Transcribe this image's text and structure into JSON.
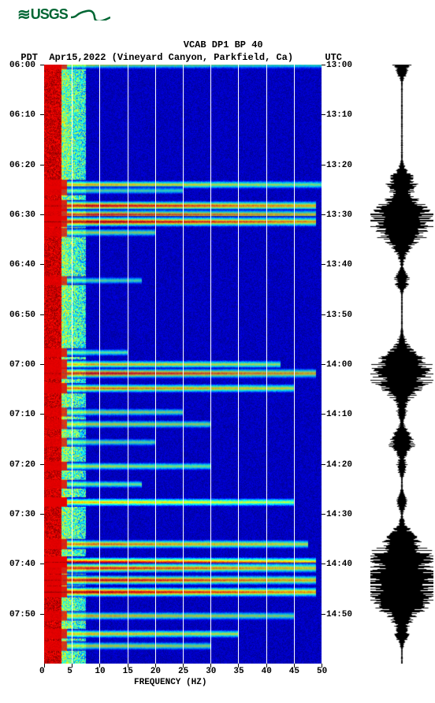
{
  "logo": {
    "text": "USGS"
  },
  "header": {
    "title": "VCAB DP1 BP 40",
    "tz_left": "PDT",
    "date": "Apr15,2022",
    "location": "(Vineyard Canyon, Parkfield, Ca)",
    "tz_right": "UTC"
  },
  "spectrogram": {
    "x_axis": {
      "label": "FREQUENCY (HZ)",
      "min": 0,
      "max": 50,
      "ticks": [
        0,
        5,
        10,
        15,
        20,
        25,
        30,
        35,
        40,
        45,
        50
      ],
      "grid_color": "#ffffff"
    },
    "y_axis_left": {
      "ticks": [
        "06:00",
        "06:10",
        "06:20",
        "06:30",
        "06:40",
        "06:50",
        "07:00",
        "07:10",
        "07:20",
        "07:30",
        "07:40",
        "07:50"
      ]
    },
    "y_axis_right": {
      "ticks": [
        "13:00",
        "13:10",
        "13:20",
        "13:30",
        "13:40",
        "13:50",
        "14:00",
        "14:10",
        "14:20",
        "14:30",
        "14:40",
        "14:50"
      ]
    },
    "background_color": "#0000d0",
    "colormap": [
      "#000080",
      "#0000ff",
      "#0080ff",
      "#00ffff",
      "#80ff80",
      "#ffff00",
      "#ff8000",
      "#ff0000",
      "#800000"
    ],
    "event_bands": [
      {
        "t": 0.0,
        "width": 1.0,
        "intensity": 0.6
      },
      {
        "t": 0.2,
        "width": 1.0,
        "intensity": 0.7
      },
      {
        "t": 0.21,
        "width": 0.5,
        "intensity": 0.5
      },
      {
        "t": 0.235,
        "width": 0.98,
        "intensity": 0.95
      },
      {
        "t": 0.25,
        "width": 0.98,
        "intensity": 0.9
      },
      {
        "t": 0.262,
        "width": 0.98,
        "intensity": 0.98
      },
      {
        "t": 0.28,
        "width": 0.4,
        "intensity": 0.6
      },
      {
        "t": 0.36,
        "width": 0.35,
        "intensity": 0.5
      },
      {
        "t": 0.48,
        "width": 0.3,
        "intensity": 0.5
      },
      {
        "t": 0.5,
        "width": 0.85,
        "intensity": 0.7
      },
      {
        "t": 0.515,
        "width": 0.98,
        "intensity": 0.95
      },
      {
        "t": 0.54,
        "width": 0.9,
        "intensity": 0.8
      },
      {
        "t": 0.58,
        "width": 0.5,
        "intensity": 0.6
      },
      {
        "t": 0.6,
        "width": 0.6,
        "intensity": 0.65
      },
      {
        "t": 0.63,
        "width": 0.4,
        "intensity": 0.55
      },
      {
        "t": 0.67,
        "width": 0.6,
        "intensity": 0.6
      },
      {
        "t": 0.7,
        "width": 0.35,
        "intensity": 0.55
      },
      {
        "t": 0.73,
        "width": 0.9,
        "intensity": 0.7
      },
      {
        "t": 0.8,
        "width": 0.95,
        "intensity": 0.8
      },
      {
        "t": 0.83,
        "width": 0.98,
        "intensity": 0.95
      },
      {
        "t": 0.84,
        "width": 0.98,
        "intensity": 0.9
      },
      {
        "t": 0.86,
        "width": 0.98,
        "intensity": 0.95
      },
      {
        "t": 0.88,
        "width": 0.98,
        "intensity": 0.98
      },
      {
        "t": 0.92,
        "width": 0.9,
        "intensity": 0.7
      },
      {
        "t": 0.95,
        "width": 0.7,
        "intensity": 0.7
      },
      {
        "t": 0.97,
        "width": 0.6,
        "intensity": 0.65
      }
    ],
    "low_freq_band_color": "#800000",
    "low_freq_band_width_frac": 0.06
  },
  "seismogram": {
    "color": "#000000",
    "events": [
      {
        "t": 0.0,
        "amp": 0.25
      },
      {
        "t": 0.2,
        "amp": 0.4
      },
      {
        "t": 0.235,
        "amp": 0.5
      },
      {
        "t": 0.25,
        "amp": 0.7
      },
      {
        "t": 0.262,
        "amp": 0.9
      },
      {
        "t": 0.28,
        "amp": 0.5
      },
      {
        "t": 0.36,
        "amp": 0.2
      },
      {
        "t": 0.48,
        "amp": 0.2
      },
      {
        "t": 0.5,
        "amp": 0.3
      },
      {
        "t": 0.515,
        "amp": 0.85
      },
      {
        "t": 0.54,
        "amp": 0.4
      },
      {
        "t": 0.58,
        "amp": 0.15
      },
      {
        "t": 0.63,
        "amp": 0.35
      },
      {
        "t": 0.67,
        "amp": 0.15
      },
      {
        "t": 0.73,
        "amp": 0.15
      },
      {
        "t": 0.8,
        "amp": 0.5
      },
      {
        "t": 0.83,
        "amp": 0.9
      },
      {
        "t": 0.86,
        "amp": 0.95
      },
      {
        "t": 0.88,
        "amp": 1.0
      },
      {
        "t": 0.92,
        "amp": 0.3
      },
      {
        "t": 0.95,
        "amp": 0.2
      }
    ]
  }
}
